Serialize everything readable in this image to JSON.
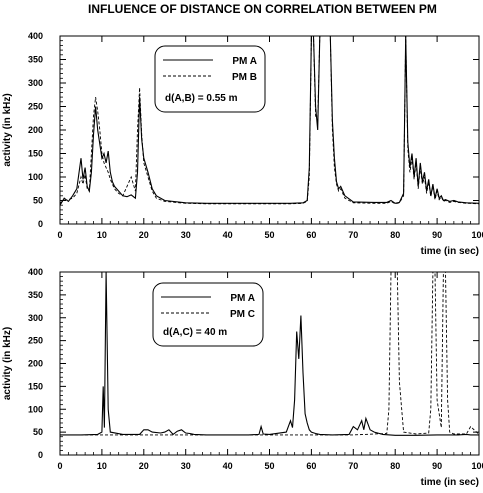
{
  "figure": {
    "title": "INFLUENCE OF DISTANCE ON CORRELATION BETWEEN PM"
  },
  "chart_data": [
    {
      "type": "line",
      "ylabel": "activity (in kHz)",
      "xlabel": "time (in sec)",
      "xlim": [
        0,
        100
      ],
      "ylim": [
        0,
        400
      ],
      "xticks": [
        0,
        10,
        20,
        30,
        40,
        50,
        60,
        70,
        80,
        90,
        100
      ],
      "yticks": [
        0,
        50,
        100,
        150,
        200,
        250,
        300,
        350,
        400
      ],
      "legend": {
        "placement": "top-center",
        "entries": [
          "PM A",
          "PM B"
        ],
        "annotation": "d(A,B) = 0.55 m"
      },
      "series": [
        {
          "name": "PM A",
          "style": "solid",
          "x": [
            0,
            1,
            2,
            3,
            4,
            5,
            5.5,
            6,
            6.5,
            7,
            7.5,
            8,
            8.5,
            9,
            9.5,
            10,
            10.5,
            11,
            11.5,
            12,
            12.5,
            13,
            14,
            15,
            16,
            17,
            18,
            18.5,
            19,
            19.5,
            20,
            21,
            22,
            23,
            25,
            30,
            35,
            40,
            45,
            50,
            55,
            58,
            59,
            59.5,
            60,
            60.5,
            61,
            61.5,
            62,
            63,
            64,
            64.5,
            65,
            65.5,
            66,
            66.5,
            67,
            67.5,
            68,
            70,
            75,
            78,
            79,
            80,
            81,
            82,
            82.5,
            83,
            83.5,
            84,
            84.5,
            85,
            85.5,
            86,
            86.5,
            87,
            87.5,
            88,
            88.5,
            89,
            89.5,
            90,
            90.5,
            91,
            91.5,
            92,
            93,
            94,
            95,
            97,
            100
          ],
          "y": [
            40,
            55,
            48,
            60,
            75,
            140,
            95,
            120,
            80,
            70,
            110,
            190,
            250,
            200,
            170,
            140,
            150,
            130,
            155,
            110,
            90,
            80,
            70,
            60,
            58,
            62,
            55,
            110,
            270,
            180,
            140,
            110,
            75,
            60,
            50,
            45,
            44,
            44,
            44,
            44,
            44,
            45,
            50,
            120,
            400,
            400,
            250,
            200,
            400,
            400,
            400,
            400,
            220,
            140,
            90,
            75,
            80,
            70,
            60,
            47,
            46,
            46,
            50,
            44,
            46,
            65,
            400,
            175,
            120,
            150,
            100,
            140,
            80,
            130,
            90,
            110,
            70,
            95,
            60,
            85,
            55,
            75,
            55,
            60,
            50,
            52,
            48,
            50,
            47,
            45,
            44
          ]
        },
        {
          "name": "PM B",
          "style": "dashed",
          "x": [
            0,
            1,
            2,
            3,
            4,
            5,
            5.5,
            6,
            6.5,
            7,
            7.5,
            8,
            8.5,
            9,
            9.5,
            10,
            10.5,
            11,
            11.5,
            12,
            12.5,
            13,
            14,
            15,
            16,
            17,
            18,
            18.5,
            19,
            19.5,
            20,
            21,
            22,
            23,
            25,
            30,
            35,
            40,
            45,
            50,
            55,
            58,
            59,
            59.5,
            60,
            60.5,
            61,
            61.5,
            62,
            63,
            64,
            64.5,
            65,
            65.5,
            66,
            66.5,
            67,
            67.5,
            68,
            70,
            75,
            78,
            79,
            80,
            81,
            82,
            82.5,
            83,
            83.5,
            84,
            84.5,
            85,
            85.5,
            86,
            86.5,
            87,
            87.5,
            88,
            88.5,
            89,
            89.5,
            90,
            90.5,
            91,
            91.5,
            92,
            93,
            94,
            95,
            97,
            100
          ],
          "y": [
            45,
            50,
            52,
            55,
            65,
            100,
            85,
            105,
            75,
            70,
            150,
            230,
            270,
            240,
            200,
            150,
            130,
            120,
            110,
            95,
            85,
            75,
            65,
            60,
            80,
            100,
            70,
            200,
            290,
            190,
            130,
            100,
            70,
            55,
            48,
            44,
            43,
            43,
            43,
            43,
            43,
            44,
            48,
            100,
            400,
            400,
            230,
            220,
            400,
            400,
            400,
            400,
            200,
            120,
            85,
            70,
            75,
            65,
            55,
            45,
            44,
            44,
            48,
            43,
            45,
            60,
            400,
            160,
            110,
            140,
            95,
            130,
            75,
            120,
            85,
            100,
            65,
            90,
            58,
            80,
            52,
            70,
            52,
            58,
            48,
            50,
            46,
            48,
            46,
            44,
            43
          ]
        }
      ]
    },
    {
      "type": "line",
      "ylabel": "activity (in kHz)",
      "xlabel": "time (in sec)",
      "xlim": [
        0,
        100
      ],
      "ylim": [
        0,
        400
      ],
      "xticks": [
        0,
        10,
        20,
        30,
        40,
        50,
        60,
        70,
        80,
        90,
        100
      ],
      "yticks": [
        0,
        50,
        100,
        150,
        200,
        250,
        300,
        350,
        400
      ],
      "legend": {
        "placement": "top-center",
        "entries": [
          "PM A",
          "PM C"
        ],
        "annotation": "d(A,C) = 40 m"
      },
      "series": [
        {
          "name": "PM A",
          "style": "solid",
          "x": [
            0,
            5,
            9,
            10,
            10.3,
            10.6,
            11,
            11.5,
            12,
            15,
            19,
            20,
            21,
            22,
            24,
            25,
            26,
            27,
            28,
            29,
            30,
            31,
            32,
            35,
            40,
            45,
            47.5,
            48,
            48.5,
            50,
            54,
            55,
            55.5,
            56,
            56.5,
            57,
            57.5,
            58,
            58.5,
            59,
            59.5,
            60,
            61,
            62,
            65,
            69,
            70,
            71,
            72,
            72.5,
            73,
            74,
            75,
            77,
            80,
            85,
            90,
            95,
            97,
            98,
            100
          ],
          "y": [
            44,
            44,
            45,
            50,
            150,
            60,
            400,
            100,
            50,
            45,
            45,
            55,
            55,
            50,
            48,
            50,
            55,
            45,
            52,
            55,
            48,
            47,
            45,
            44,
            44,
            44,
            45,
            62,
            46,
            45,
            50,
            75,
            60,
            120,
            270,
            210,
            305,
            180,
            90,
            70,
            55,
            50,
            47,
            45,
            44,
            45,
            62,
            55,
            75,
            55,
            80,
            55,
            50,
            45,
            43,
            43,
            44,
            44,
            45,
            44,
            44
          ]
        },
        {
          "name": "PM C",
          "style": "dashed",
          "x": [
            0,
            10,
            20,
            30,
            40,
            50,
            55,
            60,
            65,
            70,
            75,
            78,
            78.5,
            79,
            79.5,
            80,
            80.5,
            81,
            82,
            85,
            88,
            88.5,
            89,
            89.5,
            90,
            91,
            91.5,
            92,
            92.5,
            93,
            94,
            97,
            98,
            100
          ],
          "y": [
            44,
            44,
            44,
            44,
            44,
            44,
            44,
            44,
            44,
            44,
            46,
            47,
            100,
            400,
            400,
            400,
            400,
            160,
            50,
            46,
            48,
            100,
            400,
            400,
            120,
            60,
            400,
            400,
            120,
            50,
            46,
            46,
            62,
            45
          ]
        }
      ]
    }
  ]
}
